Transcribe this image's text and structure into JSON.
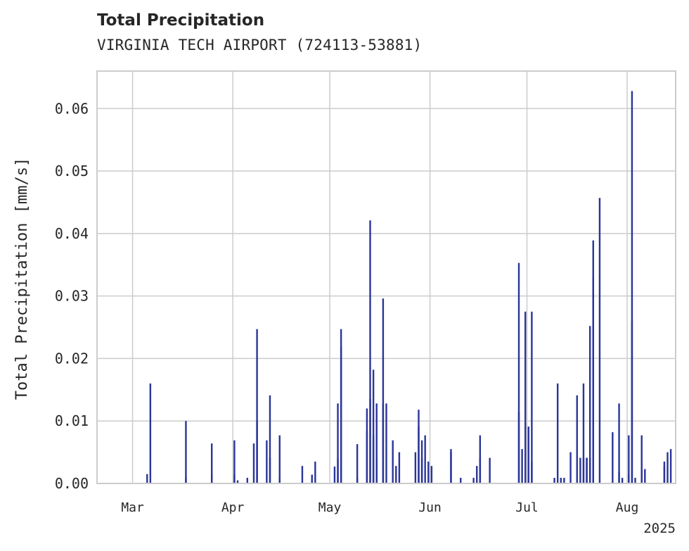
{
  "chart_data": {
    "type": "bar",
    "title": "Total Precipitation",
    "subtitle": "VIRGINIA TECH AIRPORT (724113-53881)",
    "xlabel": "",
    "ylabel": "Total Precipitation [mm/s]",
    "ylim": [
      0,
      0.066
    ],
    "yticks": [
      "0.00",
      "0.01",
      "0.02",
      "0.03",
      "0.04",
      "0.05",
      "0.06"
    ],
    "ytick_values": [
      0,
      0.01,
      0.02,
      0.03,
      0.04,
      0.05,
      0.06
    ],
    "xlim": [
      "2025-02-18",
      "2025-08-16"
    ],
    "xticks": [
      {
        "date": "2025-03-01",
        "label": "Mar"
      },
      {
        "date": "2025-04-01",
        "label": "Apr"
      },
      {
        "date": "2025-05-01",
        "label": "May"
      },
      {
        "date": "2025-06-01",
        "label": "Jun"
      },
      {
        "date": "2025-07-01",
        "label": "Jul"
      },
      {
        "date": "2025-08-01",
        "label": "Aug"
      }
    ],
    "x_offset_label": "2025",
    "grid": true,
    "colors": {
      "bars": "#2a3598",
      "grid": "#cccccc",
      "axes": "#cccccc",
      "text": "#262626"
    },
    "series": [
      {
        "points": [
          [
            "2025-03-05",
            0.0015
          ],
          [
            "2025-03-06",
            0.016
          ],
          [
            "2025-03-17",
            0.01
          ],
          [
            "2025-03-17",
            0.001
          ],
          [
            "2025-03-25",
            0.0015
          ],
          [
            "2025-03-25",
            0.0064
          ],
          [
            "2025-04-01",
            0.0069
          ],
          [
            "2025-04-01",
            0.0014
          ],
          [
            "2025-04-02",
            0.0005
          ],
          [
            "2025-04-05",
            0.0009
          ],
          [
            "2025-04-07",
            0.0064
          ],
          [
            "2025-04-08",
            0.01
          ],
          [
            "2025-04-08",
            0.0247
          ],
          [
            "2025-04-11",
            0.0069
          ],
          [
            "2025-04-12",
            0.0141
          ],
          [
            "2025-04-12",
            0.0041
          ],
          [
            "2025-04-15",
            0.0077
          ],
          [
            "2025-04-15",
            0.001
          ],
          [
            "2025-04-22",
            0.0028
          ],
          [
            "2025-04-25",
            0.0014
          ],
          [
            "2025-04-26",
            0.0035
          ],
          [
            "2025-05-02",
            0.0027
          ],
          [
            "2025-05-03",
            0.0128
          ],
          [
            "2025-05-03",
            0.004
          ],
          [
            "2025-05-04",
            0.0247
          ],
          [
            "2025-05-04",
            0.0219
          ],
          [
            "2025-05-09",
            0.0009
          ],
          [
            "2025-05-09",
            0.0063
          ],
          [
            "2025-05-12",
            0.0084
          ],
          [
            "2025-05-12",
            0.012
          ],
          [
            "2025-05-13",
            0.0421
          ],
          [
            "2025-05-13",
            0.0135
          ],
          [
            "2025-05-14",
            0.0182
          ],
          [
            "2025-05-14",
            0.0077
          ],
          [
            "2025-05-15",
            0.0128
          ],
          [
            "2025-05-15",
            0.0041
          ],
          [
            "2025-05-17",
            0.0296
          ],
          [
            "2025-05-17",
            0.0128
          ],
          [
            "2025-05-18",
            0.0128
          ],
          [
            "2025-05-20",
            0.0069
          ],
          [
            "2025-05-21",
            0.0028
          ],
          [
            "2025-05-22",
            0.005
          ],
          [
            "2025-05-27",
            0.005
          ],
          [
            "2025-05-28",
            0.0118
          ],
          [
            "2025-05-28",
            0.0091
          ],
          [
            "2025-05-29",
            0.0069
          ],
          [
            "2025-05-29",
            0.004
          ],
          [
            "2025-05-30",
            0.0077
          ],
          [
            "2025-05-31",
            0.0035
          ],
          [
            "2025-06-01",
            0.0028
          ],
          [
            "2025-06-07",
            0.0055
          ],
          [
            "2025-06-07",
            0.005
          ],
          [
            "2025-06-10",
            0.0009
          ],
          [
            "2025-06-14",
            0.0009
          ],
          [
            "2025-06-15",
            0.0028
          ],
          [
            "2025-06-16",
            0.0041
          ],
          [
            "2025-06-16",
            0.0077
          ],
          [
            "2025-06-19",
            0.0041
          ],
          [
            "2025-06-28",
            0.0353
          ],
          [
            "2025-06-28",
            0.0114
          ],
          [
            "2025-06-29",
            0.0055
          ],
          [
            "2025-06-30",
            0.0275
          ],
          [
            "2025-07-01",
            0.0091
          ],
          [
            "2025-07-02",
            0.0275
          ],
          [
            "2025-07-02",
            0.0035
          ],
          [
            "2025-07-09",
            0.0009
          ],
          [
            "2025-07-10",
            0.016
          ],
          [
            "2025-07-11",
            0.0009
          ],
          [
            "2025-07-12",
            0.0009
          ],
          [
            "2025-07-14",
            0.005
          ],
          [
            "2025-07-16",
            0.0141
          ],
          [
            "2025-07-17",
            0.0041
          ],
          [
            "2025-07-18",
            0.0041
          ],
          [
            "2025-07-18",
            0.016
          ],
          [
            "2025-07-19",
            0.0041
          ],
          [
            "2025-07-19",
            0.0041
          ],
          [
            "2025-07-20",
            0.0252
          ],
          [
            "2025-07-20",
            0.0041
          ],
          [
            "2025-07-21",
            0.0389
          ],
          [
            "2025-07-21",
            0.033
          ],
          [
            "2025-07-23",
            0.0457
          ],
          [
            "2025-07-27",
            0.0082
          ],
          [
            "2025-07-29",
            0.0018
          ],
          [
            "2025-07-29",
            0.0128
          ],
          [
            "2025-07-30",
            0.0009
          ],
          [
            "2025-08-01",
            0.0014
          ],
          [
            "2025-08-01",
            0.0077
          ],
          [
            "2025-08-02",
            0.026
          ],
          [
            "2025-08-02",
            0.0628
          ],
          [
            "2025-08-03",
            0.0009
          ],
          [
            "2025-08-05",
            0.0077
          ],
          [
            "2025-08-05",
            0.0023
          ],
          [
            "2025-08-06",
            0.0023
          ],
          [
            "2025-08-12",
            0.0035
          ],
          [
            "2025-08-12",
            0.0028
          ],
          [
            "2025-08-13",
            0.005
          ],
          [
            "2025-08-14",
            0.0055
          ]
        ]
      }
    ]
  }
}
